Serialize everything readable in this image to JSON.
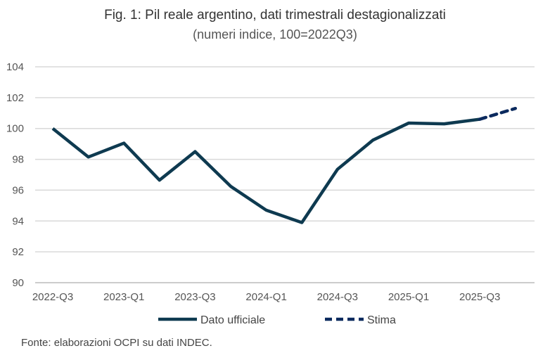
{
  "chart_data": {
    "type": "line",
    "title": "Fig. 1: Pil reale argentino, dati trimestrali destagionalizzati",
    "subtitle": "(numeri indice, 100=2022Q3)",
    "source": "Fonte: elaborazioni OCPI su dati INDEC.",
    "ylim": [
      90,
      104
    ],
    "yticks": [
      "90",
      "92",
      "94",
      "96",
      "98",
      "100",
      "102",
      "104"
    ],
    "xticks": [
      "2022-Q3",
      "2023-Q1",
      "2023-Q3",
      "2024-Q1",
      "2024-Q3",
      "2025-Q1",
      "2025-Q3"
    ],
    "quarters": [
      "2022-Q3",
      "2022-Q4",
      "2023-Q1",
      "2023-Q2",
      "2023-Q3",
      "2023-Q4",
      "2024-Q1",
      "2024-Q2",
      "2024-Q3",
      "2024-Q4",
      "2025-Q1",
      "2025-Q2",
      "2025-Q3",
      "2025-Q4"
    ],
    "grid": true,
    "legend_position": "bottom",
    "series": [
      {
        "name": "Dato ufficiale",
        "color": "#0e3a50",
        "style": "solid",
        "values": [
          100,
          98.15,
          99.05,
          96.65,
          98.5,
          96.25,
          94.7,
          93.9,
          97.35,
          99.25,
          100.35,
          100.3,
          100.6,
          null
        ]
      },
      {
        "name": "Stima",
        "color": "#0b2a5e",
        "style": "dashed",
        "values": [
          null,
          null,
          null,
          null,
          null,
          null,
          null,
          null,
          null,
          null,
          null,
          null,
          100.6,
          101.3
        ]
      }
    ]
  }
}
